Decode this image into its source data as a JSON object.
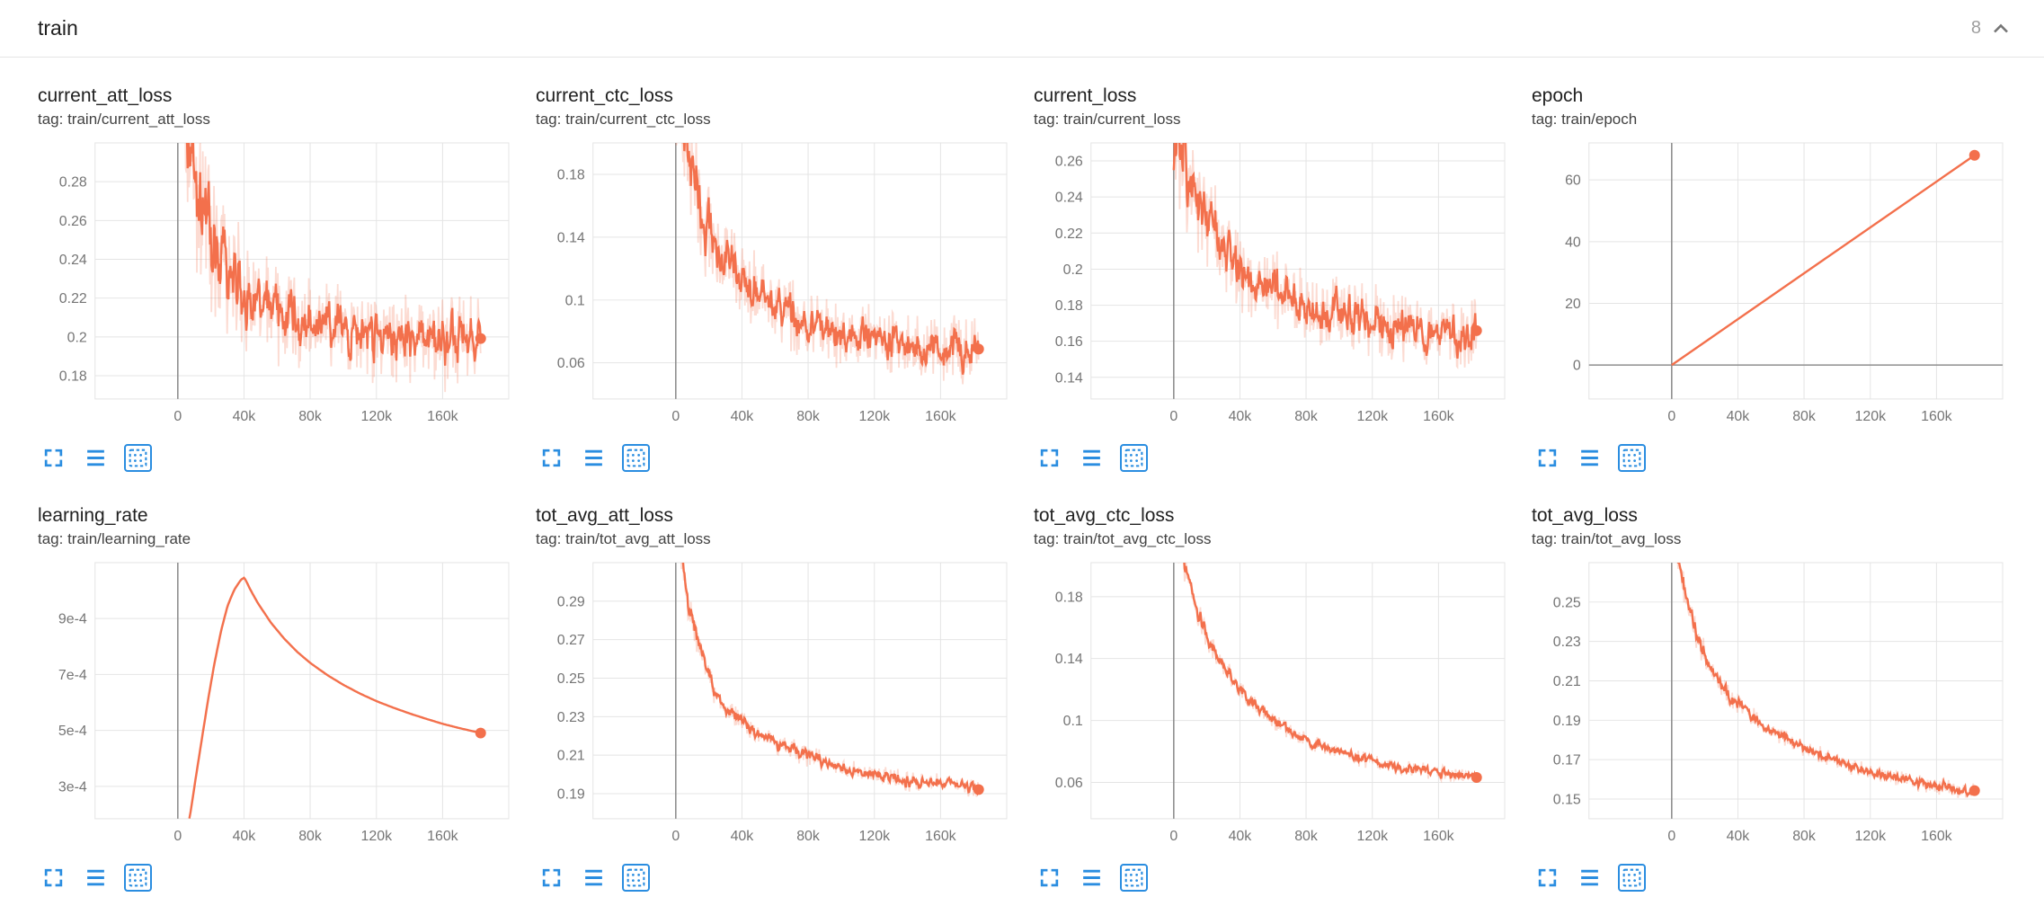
{
  "header": {
    "title": "train",
    "count": "8",
    "collapse_icon": "chevron-up-icon"
  },
  "colors": {
    "line": "#f3704c",
    "icon_blue": "#2a8de0",
    "grid": "#e4e4e4",
    "axis_zero": "#8f8f8f",
    "tick_text": "#757575",
    "title_text": "#212121",
    "tag_text": "#424242",
    "count_text": "#9e9e9e",
    "divider": "#e5e5e5"
  },
  "toolbar_icons": [
    "fullscreen-icon",
    "log-scale-icon",
    "fit-domain-icon"
  ],
  "chart_data": [
    {
      "title": "current_att_loss",
      "tag": "tag: train/current_att_loss",
      "type": "line",
      "ylim": [
        0.168,
        0.3
      ],
      "y_tick_values": [
        0.18,
        0.2,
        0.22,
        0.24,
        0.26,
        0.28
      ],
      "y_tick_labels": [
        "0.18",
        "0.2",
        "0.22",
        "0.24",
        "0.26",
        "0.28"
      ],
      "x_domain": [
        -50000,
        200000
      ],
      "x_data_max": 183000,
      "x_tick_values": [
        0,
        40000,
        80000,
        120000,
        160000
      ],
      "x_tick_labels": [
        "0",
        "40k",
        "80k",
        "120k",
        "160k"
      ],
      "trend": [
        [
          0,
          0.335
        ],
        [
          3000,
          0.325
        ],
        [
          6000,
          0.305
        ],
        [
          9000,
          0.288
        ],
        [
          12000,
          0.272
        ],
        [
          16000,
          0.258
        ],
        [
          20000,
          0.248
        ],
        [
          26000,
          0.238
        ],
        [
          32000,
          0.23
        ],
        [
          40000,
          0.2235
        ],
        [
          50000,
          0.217
        ],
        [
          60000,
          0.2125
        ],
        [
          75000,
          0.2075
        ],
        [
          90000,
          0.2035
        ],
        [
          105000,
          0.2015
        ],
        [
          120000,
          0.2
        ],
        [
          135000,
          0.199
        ],
        [
          150000,
          0.1985
        ],
        [
          165000,
          0.1985
        ],
        [
          183000,
          0.2
        ]
      ],
      "noise_amp": 0.028,
      "smoothing": 0.55,
      "points": 460,
      "end_value": 0.2
    },
    {
      "title": "current_ctc_loss",
      "tag": "tag: train/current_ctc_loss",
      "type": "line",
      "ylim": [
        0.037,
        0.2
      ],
      "y_tick_values": [
        0.06,
        0.1,
        0.14,
        0.18
      ],
      "y_tick_labels": [
        "0.06",
        "0.1",
        "0.14",
        "0.18"
      ],
      "x_domain": [
        -50000,
        200000
      ],
      "x_data_max": 183000,
      "x_tick_values": [
        0,
        40000,
        80000,
        120000,
        160000
      ],
      "x_tick_labels": [
        "0",
        "40k",
        "80k",
        "120k",
        "160k"
      ],
      "trend": [
        [
          0,
          0.215
        ],
        [
          3000,
          0.208
        ],
        [
          6000,
          0.196
        ],
        [
          9000,
          0.183
        ],
        [
          12000,
          0.17
        ],
        [
          16000,
          0.156
        ],
        [
          20000,
          0.145
        ],
        [
          26000,
          0.132
        ],
        [
          32000,
          0.122
        ],
        [
          40000,
          0.1125
        ],
        [
          50000,
          0.1035
        ],
        [
          60000,
          0.0965
        ],
        [
          75000,
          0.0885
        ],
        [
          90000,
          0.083
        ],
        [
          105000,
          0.079
        ],
        [
          120000,
          0.076
        ],
        [
          135000,
          0.0735
        ],
        [
          150000,
          0.0715
        ],
        [
          165000,
          0.07
        ],
        [
          183000,
          0.07
        ]
      ],
      "noise_amp": 0.024,
      "smoothing": 0.55,
      "points": 460,
      "end_value": 0.07
    },
    {
      "title": "current_loss",
      "tag": "tag: train/current_loss",
      "type": "line",
      "ylim": [
        0.128,
        0.27
      ],
      "y_tick_values": [
        0.14,
        0.16,
        0.18,
        0.2,
        0.22,
        0.24,
        0.26
      ],
      "y_tick_labels": [
        "0.14",
        "0.16",
        "0.18",
        "0.2",
        "0.22",
        "0.24",
        "0.26"
      ],
      "x_domain": [
        -50000,
        200000
      ],
      "x_data_max": 183000,
      "x_tick_values": [
        0,
        40000,
        80000,
        120000,
        160000
      ],
      "x_tick_labels": [
        "0",
        "40k",
        "80k",
        "120k",
        "160k"
      ],
      "trend": [
        [
          0,
          0.278
        ],
        [
          3000,
          0.272
        ],
        [
          6000,
          0.262
        ],
        [
          9000,
          0.252
        ],
        [
          12000,
          0.243
        ],
        [
          16000,
          0.233
        ],
        [
          20000,
          0.226
        ],
        [
          26000,
          0.216
        ],
        [
          32000,
          0.2085
        ],
        [
          40000,
          0.201
        ],
        [
          50000,
          0.194
        ],
        [
          60000,
          0.1885
        ],
        [
          75000,
          0.182
        ],
        [
          90000,
          0.177
        ],
        [
          105000,
          0.173
        ],
        [
          120000,
          0.1695
        ],
        [
          135000,
          0.167
        ],
        [
          150000,
          0.165
        ],
        [
          165000,
          0.1635
        ],
        [
          183000,
          0.165
        ]
      ],
      "noise_amp": 0.024,
      "smoothing": 0.55,
      "points": 460,
      "end_value": 0.165
    },
    {
      "title": "epoch",
      "tag": "tag: train/epoch",
      "type": "line",
      "ylim": [
        -11,
        72
      ],
      "y_tick_values": [
        0,
        20,
        40,
        60
      ],
      "y_tick_labels": [
        "0",
        "20",
        "40",
        "60"
      ],
      "x_domain": [
        -50000,
        200000
      ],
      "x_data_max": 183000,
      "x_tick_values": [
        0,
        40000,
        80000,
        120000,
        160000
      ],
      "x_tick_labels": [
        "0",
        "40k",
        "80k",
        "120k",
        "160k"
      ],
      "trend": [
        [
          0,
          0
        ],
        [
          183000,
          68
        ]
      ],
      "noise_amp": 0,
      "smoothing": 0,
      "points": 2,
      "end_value": 68
    },
    {
      "title": "learning_rate",
      "tag": "tag: train/learning_rate",
      "type": "line",
      "ylim": [
        0.000184,
        0.0011
      ],
      "y_tick_values": [
        0.0003,
        0.0005,
        0.0007,
        0.0009
      ],
      "y_tick_labels": [
        "3e-4",
        "5e-4",
        "7e-4",
        "9e-4"
      ],
      "x_domain": [
        -50000,
        200000
      ],
      "x_data_max": 183000,
      "x_tick_values": [
        0,
        40000,
        80000,
        120000,
        160000
      ],
      "x_tick_labels": [
        "0",
        "40k",
        "80k",
        "120k",
        "160k"
      ],
      "trend": [
        [
          7000,
          0.000185
        ],
        [
          10000,
          0.00031
        ],
        [
          14000,
          0.00046
        ],
        [
          18000,
          0.00061
        ],
        [
          22000,
          0.000745
        ],
        [
          26000,
          0.00086
        ],
        [
          30000,
          0.00095
        ],
        [
          34000,
          0.001005
        ],
        [
          38000,
          0.00104
        ],
        [
          40000,
          0.001047
        ],
        [
          44000,
          0.000998
        ],
        [
          48000,
          0.000956
        ],
        [
          56000,
          0.000885
        ],
        [
          64000,
          0.000828
        ],
        [
          72000,
          0.00078
        ],
        [
          80000,
          0.00074
        ],
        [
          90000,
          0.000698
        ],
        [
          100000,
          0.000662
        ],
        [
          110000,
          0.000631
        ],
        [
          120000,
          0.000604
        ],
        [
          130000,
          0.000581
        ],
        [
          140000,
          0.00056
        ],
        [
          150000,
          0.000541
        ],
        [
          160000,
          0.000523
        ],
        [
          170000,
          0.000508
        ],
        [
          183000,
          0.00049
        ]
      ],
      "noise_amp": 0,
      "smoothing": 0.3,
      "points": 240,
      "end_value": 0.00049
    },
    {
      "title": "tot_avg_att_loss",
      "tag": "tag: train/tot_avg_att_loss",
      "type": "line",
      "ylim": [
        0.177,
        0.31
      ],
      "y_tick_values": [
        0.19,
        0.21,
        0.23,
        0.25,
        0.27,
        0.29
      ],
      "y_tick_labels": [
        "0.19",
        "0.21",
        "0.23",
        "0.25",
        "0.27",
        "0.29"
      ],
      "x_domain": [
        -50000,
        200000
      ],
      "x_data_max": 183000,
      "x_tick_values": [
        0,
        40000,
        80000,
        120000,
        160000
      ],
      "x_tick_labels": [
        "0",
        "40k",
        "80k",
        "120k",
        "160k"
      ],
      "trend": [
        [
          0,
          0.33
        ],
        [
          3000,
          0.315
        ],
        [
          6000,
          0.298
        ],
        [
          9000,
          0.283
        ],
        [
          12000,
          0.271
        ],
        [
          15000,
          0.261
        ],
        [
          18000,
          0.2535
        ],
        [
          21000,
          0.2475
        ],
        [
          25000,
          0.2415
        ],
        [
          30000,
          0.2355
        ],
        [
          35000,
          0.2315
        ],
        [
          40000,
          0.2275
        ],
        [
          46000,
          0.2235
        ],
        [
          52000,
          0.2205
        ],
        [
          58000,
          0.2175
        ],
        [
          65000,
          0.2145
        ],
        [
          72000,
          0.212
        ],
        [
          80000,
          0.2095
        ],
        [
          88000,
          0.207
        ],
        [
          96000,
          0.205
        ],
        [
          104000,
          0.203
        ],
        [
          112000,
          0.2015
        ],
        [
          120000,
          0.2
        ],
        [
          130000,
          0.1985
        ],
        [
          140000,
          0.197
        ],
        [
          150000,
          0.196
        ],
        [
          160000,
          0.195
        ],
        [
          170000,
          0.194
        ],
        [
          183000,
          0.193
        ]
      ],
      "noise_amp": 0.006,
      "smoothing": 0.5,
      "points": 420,
      "end_value": 0.193
    },
    {
      "title": "tot_avg_ctc_loss",
      "tag": "tag: train/tot_avg_ctc_loss",
      "type": "line",
      "ylim": [
        0.0365,
        0.202
      ],
      "y_tick_values": [
        0.06,
        0.1,
        0.14,
        0.18
      ],
      "y_tick_labels": [
        "0.06",
        "0.1",
        "0.14",
        "0.18"
      ],
      "x_domain": [
        -50000,
        200000
      ],
      "x_data_max": 183000,
      "x_tick_values": [
        0,
        40000,
        80000,
        120000,
        160000
      ],
      "x_tick_labels": [
        "0",
        "40k",
        "80k",
        "120k",
        "160k"
      ],
      "trend": [
        [
          0,
          0.22
        ],
        [
          3000,
          0.212
        ],
        [
          6000,
          0.201
        ],
        [
          9000,
          0.189
        ],
        [
          12000,
          0.178
        ],
        [
          15000,
          0.168
        ],
        [
          18000,
          0.159
        ],
        [
          21000,
          0.1515
        ],
        [
          25000,
          0.143
        ],
        [
          30000,
          0.134
        ],
        [
          35000,
          0.1265
        ],
        [
          40000,
          0.12
        ],
        [
          46000,
          0.113
        ],
        [
          52000,
          0.107
        ],
        [
          58000,
          0.1015
        ],
        [
          65000,
          0.096
        ],
        [
          72000,
          0.0915
        ],
        [
          80000,
          0.087
        ],
        [
          88000,
          0.0835
        ],
        [
          96000,
          0.0805
        ],
        [
          104000,
          0.078
        ],
        [
          112000,
          0.0758
        ],
        [
          120000,
          0.0738
        ],
        [
          130000,
          0.0717
        ],
        [
          140000,
          0.0698
        ],
        [
          150000,
          0.0682
        ],
        [
          160000,
          0.0668
        ],
        [
          170000,
          0.0655
        ],
        [
          183000,
          0.064
        ]
      ],
      "noise_amp": 0.006,
      "smoothing": 0.5,
      "points": 420,
      "end_value": 0.064
    },
    {
      "title": "tot_avg_loss",
      "tag": "tag: train/tot_avg_loss",
      "type": "line",
      "ylim": [
        0.14,
        0.27
      ],
      "y_tick_values": [
        0.15,
        0.17,
        0.19,
        0.21,
        0.23,
        0.25
      ],
      "y_tick_labels": [
        "0.15",
        "0.17",
        "0.19",
        "0.21",
        "0.23",
        "0.25"
      ],
      "x_domain": [
        -50000,
        200000
      ],
      "x_data_max": 183000,
      "x_tick_values": [
        0,
        40000,
        80000,
        120000,
        160000
      ],
      "x_tick_labels": [
        "0",
        "40k",
        "80k",
        "120k",
        "160k"
      ],
      "trend": [
        [
          0,
          0.283
        ],
        [
          3000,
          0.274
        ],
        [
          6000,
          0.263
        ],
        [
          9000,
          0.252
        ],
        [
          12000,
          0.2425
        ],
        [
          15000,
          0.234
        ],
        [
          18000,
          0.2265
        ],
        [
          21000,
          0.2205
        ],
        [
          25000,
          0.214
        ],
        [
          30000,
          0.2075
        ],
        [
          35000,
          0.2025
        ],
        [
          40000,
          0.198
        ],
        [
          46000,
          0.1933
        ],
        [
          52000,
          0.1893
        ],
        [
          58000,
          0.1858
        ],
        [
          65000,
          0.1822
        ],
        [
          72000,
          0.179
        ],
        [
          80000,
          0.1757
        ],
        [
          88000,
          0.1728
        ],
        [
          96000,
          0.1702
        ],
        [
          104000,
          0.1679
        ],
        [
          112000,
          0.1658
        ],
        [
          120000,
          0.1639
        ],
        [
          130000,
          0.1617
        ],
        [
          140000,
          0.1598
        ],
        [
          150000,
          0.1581
        ],
        [
          160000,
          0.1566
        ],
        [
          170000,
          0.1552
        ],
        [
          183000,
          0.1535
        ]
      ],
      "noise_amp": 0.005,
      "smoothing": 0.5,
      "points": 420,
      "end_value": 0.1535
    }
  ]
}
